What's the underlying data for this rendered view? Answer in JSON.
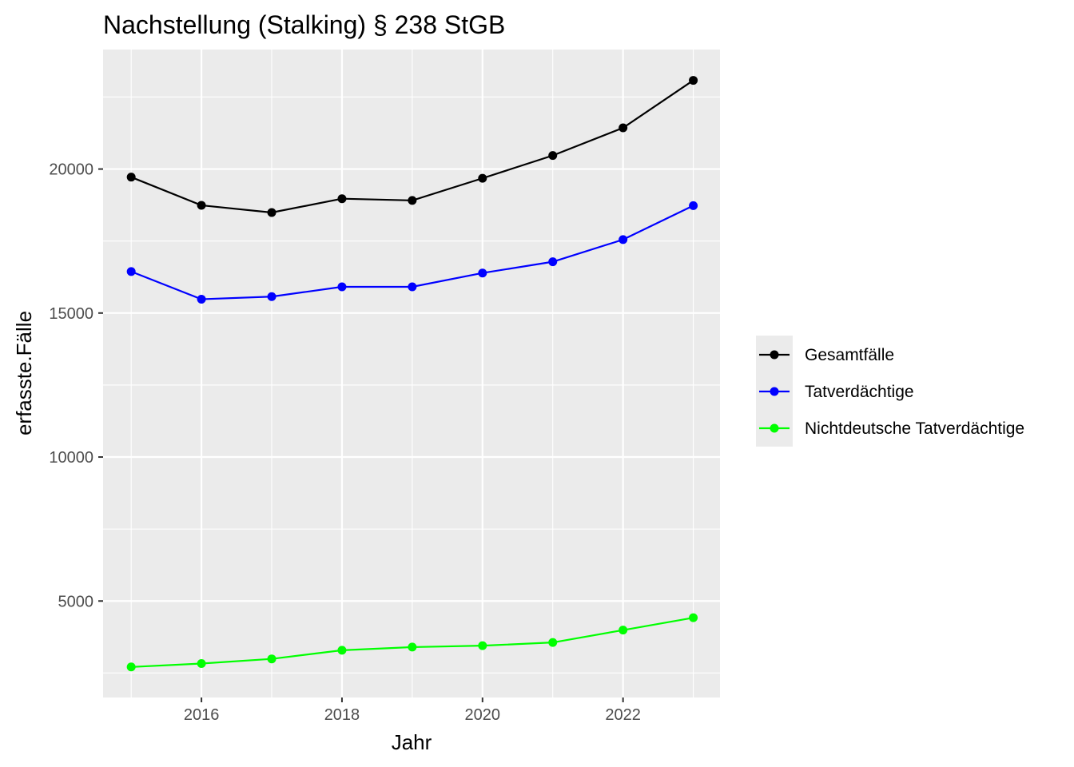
{
  "chart_data": {
    "type": "line",
    "title": "Nachstellung (Stalking) § 238 StGB",
    "xlabel": "Jahr",
    "ylabel": "erfasste.Fälle",
    "x": [
      2015,
      2016,
      2017,
      2018,
      2019,
      2020,
      2021,
      2022,
      2023
    ],
    "xlim": [
      2014.6,
      2023.38
    ],
    "ylim": [
      1650,
      24150
    ],
    "x_ticks": [
      2016,
      2018,
      2020,
      2022
    ],
    "y_ticks": [
      5000,
      10000,
      15000,
      20000
    ],
    "x_tick_labels": [
      "2016",
      "2018",
      "2020",
      "2022"
    ],
    "y_tick_labels": [
      "5000",
      "10000",
      "15000",
      "20000"
    ],
    "grid": true,
    "legend_position": "right",
    "background": "#ebebeb",
    "series": [
      {
        "name": "Gesamtfälle",
        "color": "#000000",
        "values": [
          19720,
          18740,
          18490,
          18970,
          18910,
          19680,
          20470,
          21430,
          23080
        ]
      },
      {
        "name": "Tatverdächtige",
        "color": "#0000ff",
        "values": [
          16440,
          15480,
          15570,
          15910,
          15910,
          16390,
          16780,
          17550,
          18730
        ]
      },
      {
        "name": "Nichtdeutsche Tatverdächtige",
        "color": "#00ff00",
        "values": [
          2710,
          2830,
          2990,
          3290,
          3400,
          3450,
          3560,
          3990,
          4420
        ]
      }
    ]
  }
}
